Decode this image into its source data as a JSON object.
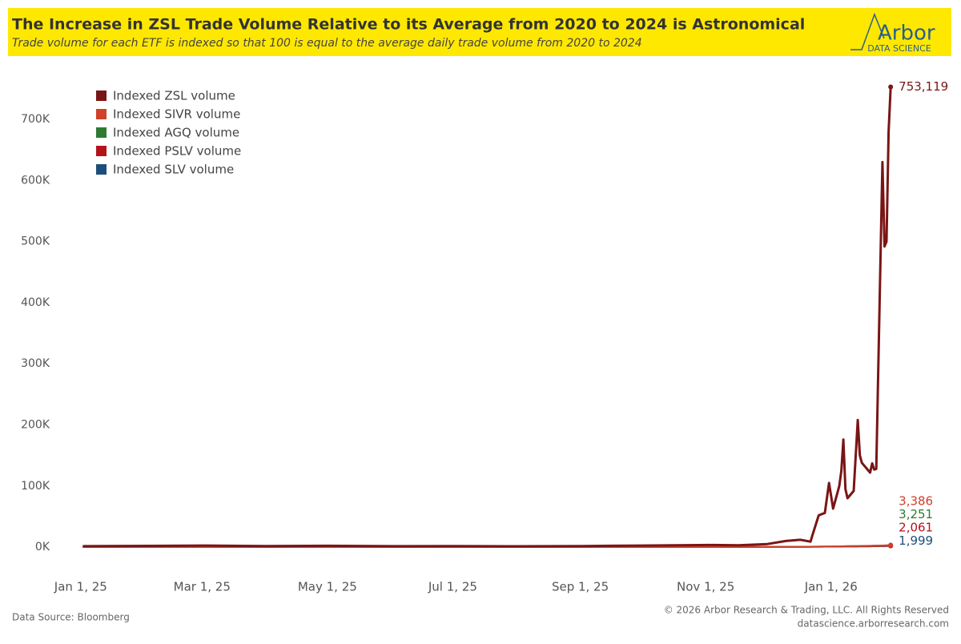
{
  "header": {
    "title": "The Increase in ZSL Trade Volume Relative to its Average from 2020 to 2024 is Astronomical",
    "subtitle": "Trade volume for each ETF is indexed so that 100 is equal to the average daily trade volume from 2020 to 2024",
    "logo": "Arbor",
    "logo_sub": "DATA SCIENCE"
  },
  "footer": {
    "source": "Data Source: Bloomberg",
    "copyright": "© 2026 Arbor Research & Trading, LLC. All Rights Reserved",
    "website": "datascience.arborresearch.com"
  },
  "chart_data": {
    "type": "line",
    "grid": false,
    "legend": "top-left",
    "x": [
      "2025-01-02",
      "2025-02-03",
      "2025-03-03",
      "2025-04-01",
      "2025-05-01",
      "2025-06-02",
      "2025-07-01",
      "2025-08-01",
      "2025-09-02",
      "2025-10-01",
      "2025-11-03",
      "2025-11-17",
      "2025-12-01",
      "2025-12-10",
      "2025-12-17",
      "2025-12-22",
      "2025-12-23",
      "2025-12-26",
      "2025-12-29",
      "2025-12-31",
      "2026-01-02",
      "2026-01-05",
      "2026-01-06",
      "2026-01-07",
      "2026-01-08",
      "2026-01-09",
      "2026-01-12",
      "2026-01-14",
      "2026-01-15",
      "2026-01-16",
      "2026-01-20",
      "2026-01-21",
      "2026-01-22",
      "2026-01-23",
      "2026-01-26",
      "2026-01-27",
      "2026-01-28",
      "2026-01-29",
      "2026-01-30"
    ],
    "xlim": [
      "2024-12-20",
      "2026-02-04"
    ],
    "xticks": [
      {
        "value": "2025-01-01",
        "label": "Jan 1, 25"
      },
      {
        "value": "2025-03-01",
        "label": "Mar 1, 25"
      },
      {
        "value": "2025-05-01",
        "label": "May 1, 25"
      },
      {
        "value": "2025-07-01",
        "label": "Jul 1, 25"
      },
      {
        "value": "2025-09-01",
        "label": "Sep 1, 25"
      },
      {
        "value": "2025-11-01",
        "label": "Nov 1, 25"
      },
      {
        "value": "2026-01-01",
        "label": "Jan 1, 26"
      }
    ],
    "ylim": [
      -20000,
      780000
    ],
    "yticks": [
      {
        "value": 0,
        "label": "0K"
      },
      {
        "value": 100000,
        "label": "100K"
      },
      {
        "value": 200000,
        "label": "200K"
      },
      {
        "value": 300000,
        "label": "300K"
      },
      {
        "value": 400000,
        "label": "400K"
      },
      {
        "value": 500000,
        "label": "500K"
      },
      {
        "value": 600000,
        "label": "600K"
      },
      {
        "value": 700000,
        "label": "700K"
      }
    ],
    "series": [
      {
        "name": "Indexed ZSL volume",
        "color": "#7a1515",
        "values": [
          1500,
          2000,
          2500,
          1800,
          2200,
          1500,
          1600,
          1400,
          1700,
          2500,
          3500,
          3000,
          5000,
          10000,
          12000,
          9000,
          20000,
          52000,
          56000,
          105000,
          63000,
          100000,
          125000,
          176000,
          95000,
          80000,
          92000,
          208000,
          150000,
          138000,
          122000,
          137000,
          127000,
          128000,
          630000,
          492000,
          500000,
          680000,
          753119
        ],
        "value_labels": [
          null,
          null,
          null,
          null,
          null,
          null,
          null,
          null,
          null,
          null,
          null,
          null,
          null,
          null,
          null,
          null,
          null,
          null,
          null,
          null,
          null,
          null,
          null,
          null,
          null,
          null,
          null,
          null,
          null,
          null,
          null,
          null,
          null,
          null,
          null,
          null,
          null,
          null,
          "753,119"
        ]
      },
      {
        "name": "Indexed SIVR volume",
        "color": "#d0402a",
        "values": [
          100,
          110,
          120,
          130,
          140,
          150,
          160,
          170,
          180,
          200,
          250,
          300,
          400,
          500,
          600,
          700,
          800,
          900,
          1000,
          1100,
          1200,
          1300,
          1400,
          1500,
          1500,
          1600,
          1700,
          1800,
          1900,
          2000,
          2100,
          2200,
          2300,
          2400,
          2700,
          2800,
          2900,
          3100,
          3386
        ],
        "value_labels": [
          null,
          null,
          null,
          null,
          null,
          null,
          null,
          null,
          null,
          null,
          null,
          null,
          null,
          null,
          null,
          null,
          null,
          null,
          null,
          null,
          null,
          null,
          null,
          null,
          null,
          null,
          null,
          null,
          null,
          null,
          null,
          null,
          null,
          null,
          null,
          null,
          null,
          null,
          "3,386"
        ]
      },
      {
        "name": "Indexed AGQ volume",
        "color": "#2e7a32",
        "values": [
          100,
          105,
          115,
          125,
          135,
          145,
          155,
          165,
          175,
          195,
          240,
          290,
          380,
          480,
          580,
          680,
          760,
          860,
          950,
          1050,
          1150,
          1250,
          1350,
          1400,
          1450,
          1550,
          1650,
          1750,
          1850,
          1950,
          2050,
          2150,
          2250,
          2350,
          2600,
          2700,
          2800,
          3000,
          3251
        ],
        "value_labels": [
          null,
          null,
          null,
          null,
          null,
          null,
          null,
          null,
          null,
          null,
          null,
          null,
          null,
          null,
          null,
          null,
          null,
          null,
          null,
          null,
          null,
          null,
          null,
          null,
          null,
          null,
          null,
          null,
          null,
          null,
          null,
          null,
          null,
          null,
          null,
          null,
          null,
          null,
          "3,251"
        ]
      },
      {
        "name": "Indexed PSLV volume",
        "color": "#b3141c",
        "values": [
          100,
          100,
          110,
          115,
          120,
          125,
          130,
          140,
          150,
          160,
          200,
          240,
          300,
          360,
          420,
          480,
          540,
          600,
          660,
          720,
          780,
          840,
          900,
          960,
          1000,
          1050,
          1100,
          1150,
          1200,
          1250,
          1300,
          1400,
          1450,
          1500,
          1650,
          1750,
          1850,
          1950,
          2061
        ],
        "value_labels": [
          null,
          null,
          null,
          null,
          null,
          null,
          null,
          null,
          null,
          null,
          null,
          null,
          null,
          null,
          null,
          null,
          null,
          null,
          null,
          null,
          null,
          null,
          null,
          null,
          null,
          null,
          null,
          null,
          null,
          null,
          null,
          null,
          null,
          null,
          null,
          null,
          null,
          null,
          "2,061"
        ]
      },
      {
        "name": "Indexed SLV volume",
        "color": "#1d4e7a",
        "values": [
          100,
          100,
          105,
          110,
          115,
          120,
          125,
          135,
          145,
          155,
          190,
          230,
          290,
          350,
          410,
          470,
          530,
          590,
          650,
          710,
          770,
          830,
          890,
          950,
          990,
          1040,
          1090,
          1140,
          1190,
          1240,
          1290,
          1360,
          1420,
          1480,
          1620,
          1720,
          1810,
          1900,
          1999
        ],
        "value_labels": [
          null,
          null,
          null,
          null,
          null,
          null,
          null,
          null,
          null,
          null,
          null,
          null,
          null,
          null,
          null,
          null,
          null,
          null,
          null,
          null,
          null,
          null,
          null,
          null,
          null,
          null,
          null,
          null,
          null,
          null,
          null,
          null,
          null,
          null,
          null,
          null,
          null,
          null,
          "1,999"
        ]
      }
    ]
  }
}
